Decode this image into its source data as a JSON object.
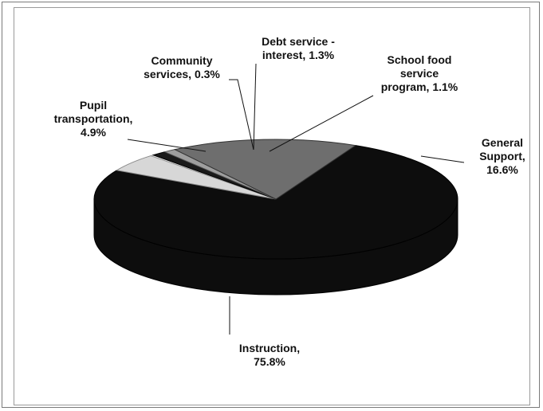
{
  "chart_data": {
    "type": "pie",
    "style": "3d",
    "title": "",
    "slices": [
      {
        "label_lines": [
          "Instruction,",
          "75.8%"
        ],
        "category": "Instruction",
        "value": 75.8,
        "color": "#0d0d0d",
        "edge": "#000000"
      },
      {
        "label_lines": [
          "Pupil",
          "transportation,",
          "4.9%"
        ],
        "category": "Pupil transportation",
        "value": 4.9,
        "color": "#d7d7d7",
        "edge": "#8a8a8a"
      },
      {
        "label_lines": [
          "Community",
          "services, 0.3%"
        ],
        "category": "Community services",
        "value": 0.3,
        "color": "#f2f2f2",
        "edge": "#9a9a9a"
      },
      {
        "label_lines": [
          "Debt service -",
          "interest, 1.3%"
        ],
        "category": "Debt service - interest",
        "value": 1.3,
        "color": "#1a1a1a",
        "edge": "#000000"
      },
      {
        "label_lines": [
          "School food",
          "service",
          "program, 1.1%"
        ],
        "category": "School food service program",
        "value": 1.1,
        "color": "#9e9e9e",
        "edge": "#555555"
      },
      {
        "label_lines": [
          "General",
          "Support,",
          "16.6%"
        ],
        "category": "General Support",
        "value": 16.6,
        "color": "#6e6e6e",
        "edge": "#333333"
      }
    ],
    "legend": "none"
  }
}
